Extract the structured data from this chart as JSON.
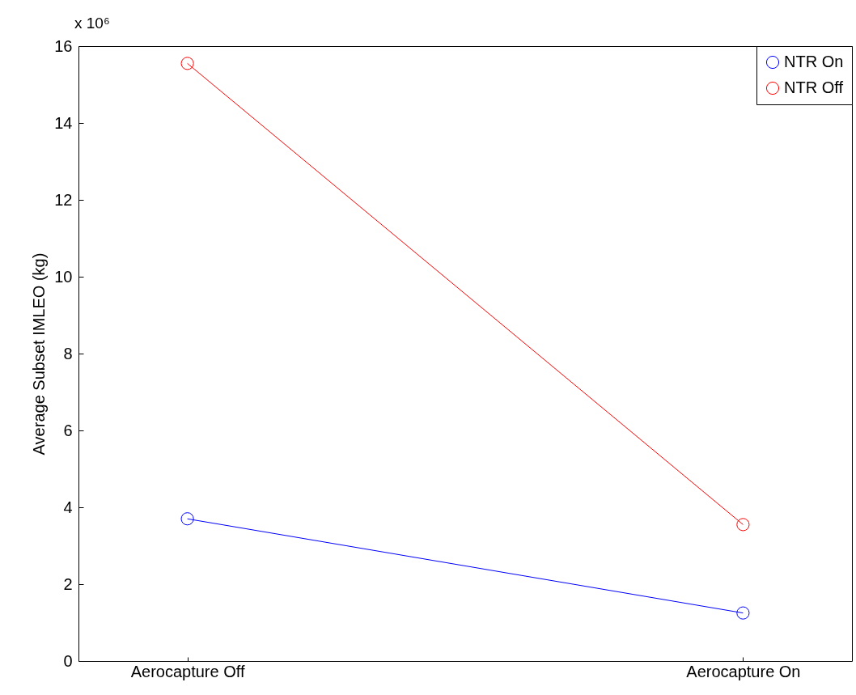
{
  "chart_data": {
    "type": "line",
    "ylabel": "Average Subset IMLEO (kg)",
    "annotations": [
      "x 10⁶"
    ],
    "categories": [
      "Aerocapture Off",
      "Aerocapture On"
    ],
    "series": [
      {
        "name": "NTR On",
        "color": "#0000ff",
        "values": [
          3.7,
          1.25
        ]
      },
      {
        "name": "NTR Off",
        "color": "#ff0000",
        "values": [
          15.55,
          3.55
        ]
      }
    ],
    "ylim": [
      0,
      16
    ],
    "yticks": [
      0,
      2,
      4,
      6,
      8,
      10,
      12,
      14,
      16
    ],
    "grid": false,
    "legend": "top right",
    "marker": "circle",
    "line_style": "solid"
  }
}
